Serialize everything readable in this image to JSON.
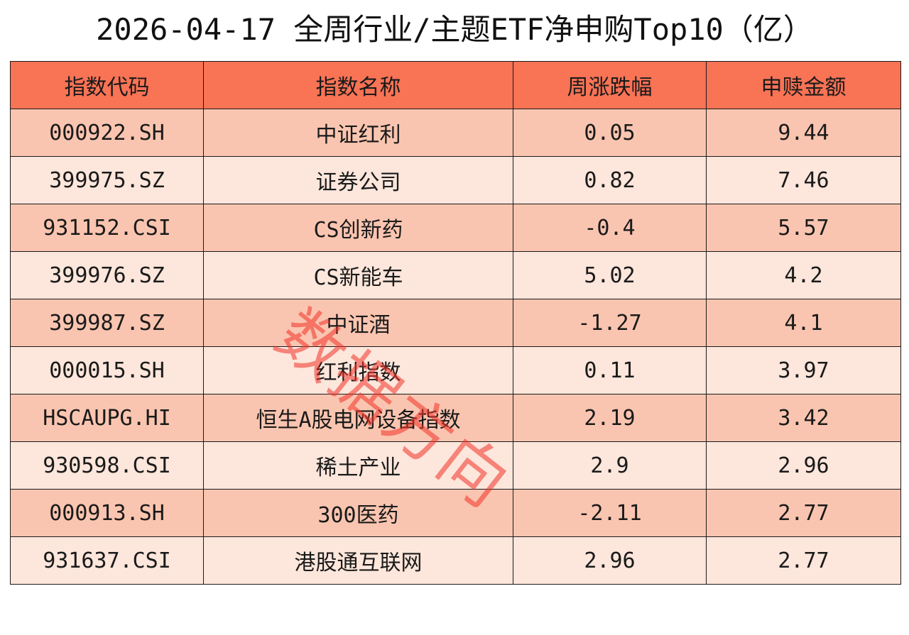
{
  "title": "2026-04-17 全周行业/主题ETF净申购Top10（亿）",
  "watermark": "数据方向",
  "colors": {
    "header_bg": "#f97355",
    "row_odd_bg": "#fac5b0",
    "row_even_bg": "#fde6db",
    "watermark": "#f03228"
  },
  "chart_data": {
    "type": "table",
    "title": "2026-04-17 全周行业/主题ETF净申购Top10（亿）",
    "columns": [
      "指数代码",
      "指数名称",
      "周涨跌幅",
      "申赎金额"
    ],
    "rows": [
      [
        "000922.SH",
        "中证红利",
        "0.05",
        "9.44"
      ],
      [
        "399975.SZ",
        "证券公司",
        "0.82",
        "7.46"
      ],
      [
        "931152.CSI",
        "CS创新药",
        "-0.4",
        "5.57"
      ],
      [
        "399976.SZ",
        "CS新能车",
        "5.02",
        "4.2"
      ],
      [
        "399987.SZ",
        "中证酒",
        "-1.27",
        "4.1"
      ],
      [
        "000015.SH",
        "红利指数",
        "0.11",
        "3.97"
      ],
      [
        "HSCAUPG.HI",
        "恒生A股电网设备指数",
        "2.19",
        "3.42"
      ],
      [
        "930598.CSI",
        "稀土产业",
        "2.9",
        "2.96"
      ],
      [
        "000913.SH",
        "300医药",
        "-2.11",
        "2.77"
      ],
      [
        "931637.CSI",
        "港股通互联网",
        "2.96",
        "2.77"
      ]
    ]
  }
}
